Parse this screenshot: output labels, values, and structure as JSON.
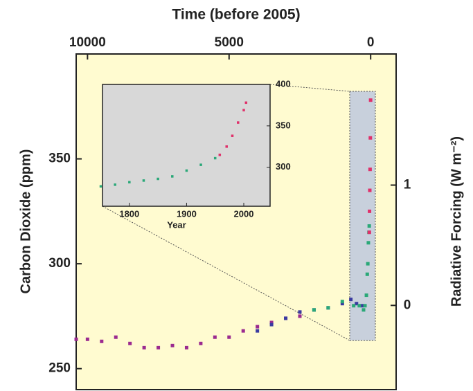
{
  "chart_data": [
    {
      "type": "scatter",
      "xlabel": "Time (before 2005)",
      "ylabel": "Carbon Dioxide (ppm)",
      "y2label": "Radiative Forcing (W m⁻²)",
      "xlim": [
        10400,
        -900
      ],
      "xticks": [
        10000,
        5000,
        0
      ],
      "ylim": [
        240,
        400
      ],
      "yticks": [
        250,
        300,
        350
      ],
      "y2lim": [
        -0.7,
        2.09
      ],
      "y2ticks": [
        0,
        1
      ],
      "series": [
        {
          "color": "#9b2a8f",
          "x": [
            10400,
            10000,
            9500,
            9000,
            8500,
            8000,
            7500,
            7000,
            6500,
            6000,
            5500,
            5000,
            4500,
            4000,
            3500,
            3000,
            2500
          ],
          "values": [
            264,
            264,
            263,
            265,
            262,
            260,
            260,
            261,
            260,
            262,
            265,
            265,
            268,
            270,
            272,
            274,
            275
          ]
        },
        {
          "color": "#3a3aa0",
          "x": [
            4000,
            3500,
            3000,
            2500,
            2000,
            1500,
            1000,
            700,
            500,
            300
          ],
          "values": [
            268,
            271,
            274,
            277,
            278,
            279,
            281,
            283,
            281,
            280
          ]
        },
        {
          "color": "#2aa878",
          "x": [
            2000,
            1500,
            1000,
            600,
            400,
            250,
            200,
            150,
            120,
            100,
            80,
            60,
            50
          ],
          "values": [
            278,
            279,
            282,
            280,
            280,
            278,
            280,
            285,
            295,
            300,
            310,
            315,
            318
          ]
        },
        {
          "color": "#e0306a",
          "x": [
            47,
            40,
            30,
            20,
            10,
            1
          ],
          "values": [
            315,
            325,
            335,
            345,
            360,
            378
          ]
        }
      ]
    },
    {
      "type": "scatter",
      "xlabel": "Year",
      "xlim": [
        1753,
        2046
      ],
      "xticks": [
        1800,
        1900,
        2000
      ],
      "ylim": [
        253,
        400
      ],
      "yticks": [
        300,
        350,
        400
      ],
      "series": [
        {
          "color": "#2aa878",
          "x": [
            1750,
            1775,
            1800,
            1825,
            1850,
            1875,
            1900,
            1925,
            1950
          ],
          "values": [
            277,
            279,
            282,
            284,
            286,
            289,
            296,
            303,
            311
          ]
        },
        {
          "color": "#e0306a",
          "x": [
            1958,
            1970,
            1980,
            1990,
            2000,
            2004
          ],
          "values": [
            315,
            325,
            338,
            354,
            369,
            378
          ]
        }
      ]
    }
  ]
}
